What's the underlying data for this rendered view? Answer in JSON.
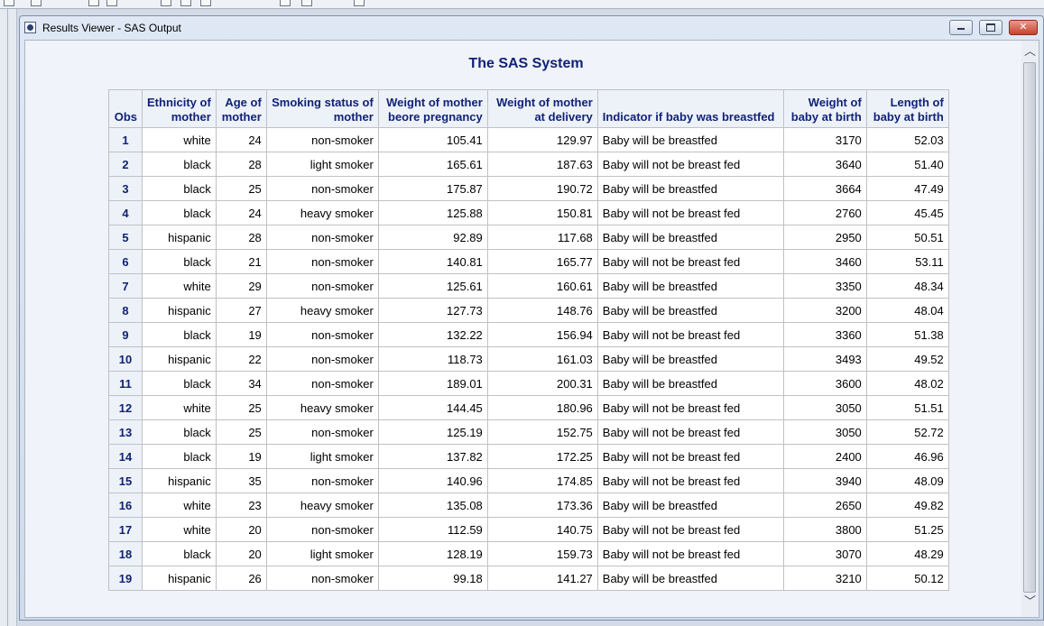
{
  "window": {
    "title": "Results Viewer - SAS Output",
    "controls": {
      "minimize_icon": "minimize-icon",
      "maximize_icon": "maximize-icon",
      "close_icon": "close-icon",
      "close_glyph": "✕"
    }
  },
  "report": {
    "title": "The SAS System",
    "columns": [
      {
        "line1": "Obs",
        "line2": ""
      },
      {
        "line1": "Ethnicity of",
        "line2": "mother"
      },
      {
        "line1": "Age of",
        "line2": "mother"
      },
      {
        "line1": "Smoking status of",
        "line2": "mother"
      },
      {
        "line1": "Weight of mother",
        "line2": "beore pregnancy"
      },
      {
        "line1": "Weight of mother",
        "line2": "at delivery"
      },
      {
        "line1": "Indicator if baby was breastfed",
        "line2": ""
      },
      {
        "line1": "Weight of",
        "line2": "baby at birth"
      },
      {
        "line1": "Length of",
        "line2": "baby at birth"
      }
    ],
    "rows": [
      [
        "1",
        "white",
        "24",
        "non-smoker",
        "105.41",
        "129.97",
        "Baby will be breastfed",
        "3170",
        "52.03"
      ],
      [
        "2",
        "black",
        "28",
        "light smoker",
        "165.61",
        "187.63",
        "Baby will not be breast fed",
        "3640",
        "51.40"
      ],
      [
        "3",
        "black",
        "25",
        "non-smoker",
        "175.87",
        "190.72",
        "Baby will be breastfed",
        "3664",
        "47.49"
      ],
      [
        "4",
        "black",
        "24",
        "heavy smoker",
        "125.88",
        "150.81",
        "Baby will not be breast fed",
        "2760",
        "45.45"
      ],
      [
        "5",
        "hispanic",
        "28",
        "non-smoker",
        "92.89",
        "117.68",
        "Baby will be breastfed",
        "2950",
        "50.51"
      ],
      [
        "6",
        "black",
        "21",
        "non-smoker",
        "140.81",
        "165.77",
        "Baby will not be breast fed",
        "3460",
        "53.11"
      ],
      [
        "7",
        "white",
        "29",
        "non-smoker",
        "125.61",
        "160.61",
        "Baby will be breastfed",
        "3350",
        "48.34"
      ],
      [
        "8",
        "hispanic",
        "27",
        "heavy smoker",
        "127.73",
        "148.76",
        "Baby will be breastfed",
        "3200",
        "48.04"
      ],
      [
        "9",
        "black",
        "19",
        "non-smoker",
        "132.22",
        "156.94",
        "Baby will not be breast fed",
        "3360",
        "51.38"
      ],
      [
        "10",
        "hispanic",
        "22",
        "non-smoker",
        "118.73",
        "161.03",
        "Baby will be breastfed",
        "3493",
        "49.52"
      ],
      [
        "11",
        "black",
        "34",
        "non-smoker",
        "189.01",
        "200.31",
        "Baby will be breastfed",
        "3600",
        "48.02"
      ],
      [
        "12",
        "white",
        "25",
        "heavy smoker",
        "144.45",
        "180.96",
        "Baby will not be breast fed",
        "3050",
        "51.51"
      ],
      [
        "13",
        "black",
        "25",
        "non-smoker",
        "125.19",
        "152.75",
        "Baby will not be breast fed",
        "3050",
        "52.72"
      ],
      [
        "14",
        "black",
        "19",
        "light smoker",
        "137.82",
        "172.25",
        "Baby will not be breast fed",
        "2400",
        "46.96"
      ],
      [
        "15",
        "hispanic",
        "35",
        "non-smoker",
        "140.96",
        "174.85",
        "Baby will not be breast fed",
        "3940",
        "48.09"
      ],
      [
        "16",
        "white",
        "23",
        "heavy smoker",
        "135.08",
        "173.36",
        "Baby will be breastfed",
        "2650",
        "49.82"
      ],
      [
        "17",
        "white",
        "20",
        "non-smoker",
        "112.59",
        "140.75",
        "Baby will not be breast fed",
        "3800",
        "51.25"
      ],
      [
        "18",
        "black",
        "20",
        "light smoker",
        "128.19",
        "159.73",
        "Baby will not be breast fed",
        "3070",
        "48.29"
      ],
      [
        "19",
        "hispanic",
        "26",
        "non-smoker",
        "99.18",
        "141.27",
        "Baby will be breastfed",
        "3210",
        "50.12"
      ]
    ]
  },
  "scrollbar": {
    "up_icon": "scroll-up-icon",
    "down_icon": "scroll-down-icon",
    "up_glyph": "︿",
    "down_glyph": "﹀"
  },
  "colors": {
    "header_text": "#112277",
    "header_bg": "#edf2f9",
    "cell_bg": "#ffffff",
    "grid": "#c1c1c1",
    "close_button": "#c7422d"
  }
}
